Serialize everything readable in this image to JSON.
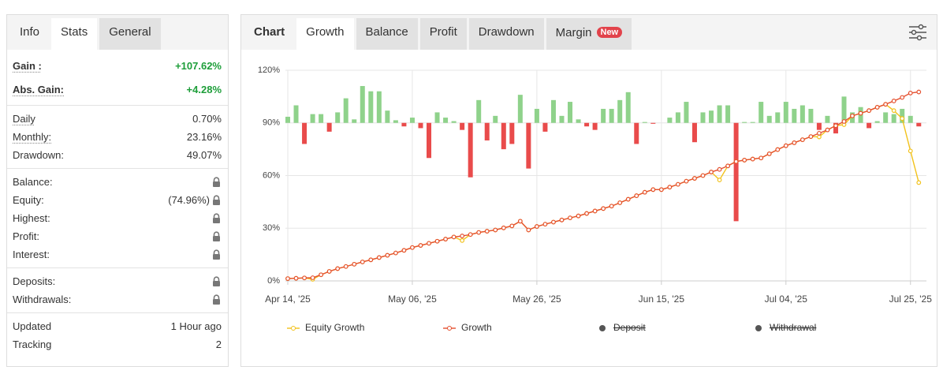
{
  "left_panel": {
    "tabs": [
      "Info",
      "Stats",
      "General"
    ],
    "active_tab": 1,
    "groups": [
      [
        {
          "label": "Gain :",
          "value": "+107.62%",
          "highlight": true,
          "underline": true
        },
        {
          "label": "Abs. Gain:",
          "value": "+4.28%",
          "highlight": true,
          "underline": true
        }
      ],
      [
        {
          "label": "Daily",
          "value": "0.70%",
          "underline": true
        },
        {
          "label": "Monthly:",
          "value": "23.16%",
          "underline": true
        },
        {
          "label": "Drawdown:",
          "value": "49.07%"
        }
      ],
      [
        {
          "label": "Balance:",
          "locked": true
        },
        {
          "label": "Equity:",
          "value": "(74.96%)",
          "locked": true
        },
        {
          "label": "Highest:",
          "locked": true
        },
        {
          "label": "Profit:",
          "locked": true
        },
        {
          "label": "Interest:",
          "locked": true
        }
      ],
      [
        {
          "label": "Deposits:",
          "locked": true
        },
        {
          "label": "Withdrawals:",
          "locked": true
        }
      ],
      [
        {
          "label": "Updated",
          "value": "1 Hour ago"
        },
        {
          "label": "Tracking",
          "value": "2"
        }
      ]
    ]
  },
  "right_panel": {
    "tabs": [
      {
        "label": "Chart"
      },
      {
        "label": "Growth"
      },
      {
        "label": "Balance"
      },
      {
        "label": "Profit"
      },
      {
        "label": "Drawdown"
      },
      {
        "label": "Margin",
        "badge": "New"
      }
    ],
    "active_tab": 1
  },
  "chart_data": {
    "type": "line",
    "categories": [
      "Apr 14, '25",
      null,
      null,
      null,
      null,
      null,
      null,
      null,
      null,
      null,
      null,
      null,
      null,
      null,
      null,
      "May 06, '25",
      null,
      null,
      null,
      null,
      null,
      null,
      null,
      null,
      null,
      null,
      null,
      null,
      null,
      null,
      "May 26, '25",
      null,
      null,
      null,
      null,
      null,
      null,
      null,
      null,
      null,
      null,
      null,
      null,
      null,
      null,
      "Jun 15, '25",
      null,
      null,
      null,
      null,
      null,
      null,
      null,
      null,
      null,
      null,
      null,
      null,
      null,
      null,
      "Jul 04, '25",
      null,
      null,
      null,
      null,
      null,
      null,
      null,
      null,
      null,
      null,
      null,
      null,
      null,
      null,
      "Jul 25, '25",
      null
    ],
    "ylim": [
      0,
      120
    ],
    "yticks": [
      {
        "value": 0,
        "label": "0%"
      },
      {
        "value": 30,
        "label": "30%"
      },
      {
        "value": 60,
        "label": "60%"
      },
      {
        "value": 90,
        "label": "90%"
      },
      {
        "value": 120,
        "label": "120%"
      }
    ],
    "y2lim": [
      -9,
      3
    ],
    "grid": true,
    "series": [
      {
        "type": "bar",
        "axis": "y2",
        "color": "#8fd28b",
        "negative_color": "#e94b4b",
        "values": [
          0.35,
          1.0,
          -1.2,
          0.5,
          0.5,
          -0.5,
          0.6,
          1.4,
          0.2,
          2.1,
          1.8,
          1.8,
          0.7,
          0.15,
          -0.2,
          0.3,
          -0.3,
          -2.0,
          0.6,
          0.3,
          0.1,
          -0.4,
          -3.1,
          1.3,
          -1.0,
          0.4,
          -1.5,
          -1.2,
          1.6,
          -2.6,
          0.8,
          -0.5,
          1.3,
          0.4,
          1.2,
          0.2,
          -0.2,
          -0.4,
          0.8,
          0.8,
          1.3,
          1.75,
          -1.2,
          0.05,
          -0.05,
          0,
          0.3,
          0.6,
          1.2,
          -1.1,
          0.6,
          0.7,
          1.0,
          1.0,
          -5.6,
          0.05,
          0.05,
          1.2,
          0.4,
          0.6,
          1.2,
          0.8,
          1.0,
          0.8,
          -0.4,
          0.4,
          -0.6,
          1.5,
          0.6,
          0.9,
          -0.3,
          0.1,
          0.6,
          0.5,
          0.8,
          0.4,
          -0.2
        ]
      },
      {
        "name": "Equity Growth",
        "color": "#f2c21b",
        "values": [
          1.3,
          1.5,
          1.7,
          0.9,
          3.5,
          5.4,
          7,
          8.2,
          9.5,
          10.8,
          12,
          13.3,
          14.6,
          15.9,
          17.4,
          19,
          20.2,
          21.4,
          22.6,
          23.8,
          25,
          23,
          26.4,
          27.6,
          28.3,
          29,
          30.2,
          31.3,
          34,
          29,
          31,
          32.3,
          33.5,
          34.7,
          35.9,
          37,
          38.4,
          39.8,
          41.2,
          42.6,
          44.5,
          46.5,
          48.5,
          50.5,
          52,
          52,
          53.4,
          55,
          56.8,
          58.4,
          60,
          62,
          57.5,
          65.5,
          68,
          68.8,
          69.4,
          70,
          72.4,
          74.8,
          77,
          78.7,
          80.4,
          82.2,
          82,
          86,
          88.4,
          89,
          94,
          95.5,
          97,
          98.9,
          100.6,
          97,
          92.5,
          74,
          56
        ]
      },
      {
        "name": "Growth",
        "color": "#e5502f",
        "values": [
          1.3,
          1.5,
          1.7,
          1.8,
          3.5,
          5.4,
          7,
          8.2,
          9.5,
          10.8,
          12,
          13.3,
          14.6,
          15.9,
          17.4,
          19,
          20.2,
          21.4,
          22.6,
          23.8,
          25,
          25.6,
          26.4,
          27.6,
          28.3,
          29,
          30.2,
          31.3,
          34,
          29,
          31,
          32.3,
          33.5,
          34.7,
          35.9,
          37,
          38.4,
          39.8,
          41.2,
          42.6,
          44.5,
          46.5,
          48.5,
          50.5,
          52,
          52,
          53.4,
          55,
          56.8,
          58.4,
          60,
          62,
          63.5,
          65.5,
          68,
          68.8,
          69.4,
          70,
          72.4,
          74.8,
          77,
          78.7,
          80.4,
          82.2,
          84.1,
          86,
          88.4,
          90.8,
          94,
          95.5,
          97,
          98.9,
          100.6,
          102.5,
          104.5,
          107,
          107.62
        ]
      }
    ],
    "inactive_legend": [
      {
        "name": "Deposit",
        "color": "#555555"
      },
      {
        "name": "Withdrawal",
        "color": "#555555"
      }
    ]
  }
}
